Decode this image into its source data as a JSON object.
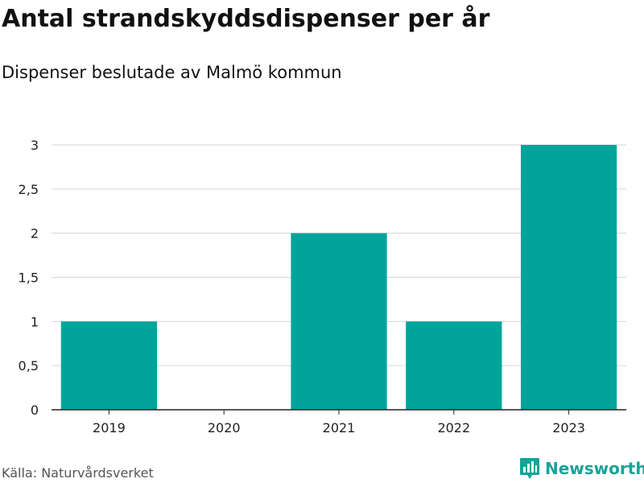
{
  "header": {
    "title": "Antal strandskyddsdispenser per år",
    "subtitle": "Dispenser beslutade av Malmö kommun"
  },
  "footer": {
    "source": "Källa: Naturvårdsverket",
    "brand": "Newsworthy",
    "brand_icon": "bar-chart-icon"
  },
  "colors": {
    "bar": "#00a49a",
    "grid": "#d6d6d6",
    "axis": "#222222",
    "brand": "#17a398"
  },
  "chart_data": {
    "type": "bar",
    "categories": [
      "2019",
      "2020",
      "2021",
      "2022",
      "2023"
    ],
    "values": [
      1,
      0,
      2,
      1,
      3
    ],
    "title": "Antal strandskyddsdispenser per år",
    "subtitle": "Dispenser beslutade av Malmö kommun",
    "xlabel": "",
    "ylabel": "",
    "ylim": [
      0,
      3
    ],
    "yticks": [
      0,
      0.5,
      1,
      1.5,
      2,
      2.5,
      3
    ],
    "ytick_labels": [
      "0",
      "0,5",
      "1",
      "1,5",
      "2",
      "2,5",
      "3"
    ],
    "grid": true
  }
}
